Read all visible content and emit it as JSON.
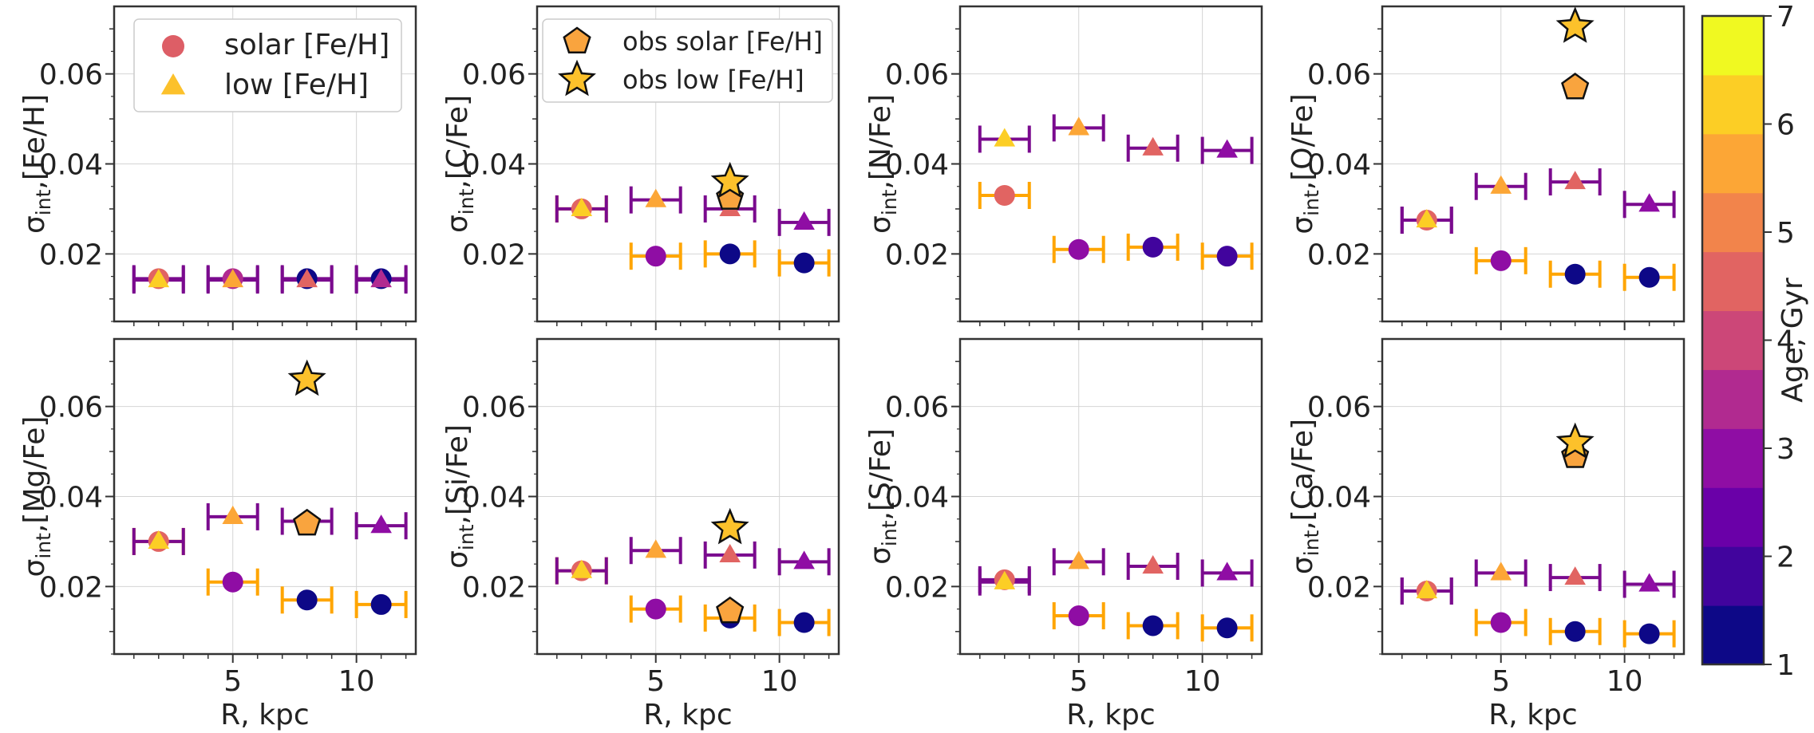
{
  "chart_data": {
    "type": "scatter",
    "layout": "2x4 grid of panels sharing x axis",
    "x_range": [
      0.2,
      12.4
    ],
    "y_range": [
      0.005,
      0.075
    ],
    "x_ticks": [
      5,
      10
    ],
    "y_ticks": [
      0.02,
      0.04,
      0.06
    ],
    "y_tick_labels": [
      "0.02",
      "0.04",
      "0.06"
    ],
    "x_tick_labels": [
      "5",
      "10"
    ],
    "xlabel": "R, kpc",
    "grid": true,
    "xerr": 1.0,
    "marker_legend": {
      "solar": "solar [Fe/H]",
      "low": "low [Fe/H]",
      "obs_solar": "obs solar [Fe/H]",
      "obs_low": "obs low [Fe/H]"
    },
    "colorbar": {
      "label": "Age, Gyr",
      "min": 1,
      "max": 7,
      "ticks": [
        "1",
        "2",
        "3",
        "4",
        "5",
        "6",
        "7"
      ],
      "colors": [
        "#0d0887",
        "#41049d",
        "#6a00a8",
        "#8f0da4",
        "#b12a90",
        "#cc4778",
        "#e16462",
        "#f2844b",
        "#fca636",
        "#fcce25",
        "#f0f921"
      ]
    },
    "panels": [
      {
        "element": "[Fe/H]",
        "ylabel_sub": "int",
        "ylabel_rest": ",[Fe/H]",
        "solar": [
          {
            "x": 2,
            "y": 0.0145,
            "age": 4.6,
            "err": "p"
          },
          {
            "x": 5,
            "y": 0.0145,
            "age": 3.3,
            "err": "p"
          },
          {
            "x": 8,
            "y": 0.0145,
            "age": 1.5,
            "err": "p"
          },
          {
            "x": 11,
            "y": 0.0145,
            "age": 1.5,
            "err": "p"
          }
        ],
        "low": [
          {
            "x": 2,
            "y": 0.0142,
            "age": 6.1,
            "err": "p"
          },
          {
            "x": 5,
            "y": 0.0142,
            "age": 5.6,
            "err": "p"
          },
          {
            "x": 8,
            "y": 0.0142,
            "age": 4.8,
            "err": "p"
          },
          {
            "x": 11,
            "y": 0.0142,
            "age": 3.2,
            "err": "p"
          }
        ],
        "obs_solar": [],
        "obs_low": []
      },
      {
        "element": "[C/Fe]",
        "ylabel_sub": "int",
        "ylabel_rest": ",[C/Fe]",
        "solar": [
          {
            "x": 2,
            "y": 0.03,
            "age": 4.7,
            "err": "o"
          },
          {
            "x": 5,
            "y": 0.0195,
            "age": 2.8,
            "err": "o"
          },
          {
            "x": 8,
            "y": 0.02,
            "age": 1.5,
            "err": "o"
          },
          {
            "x": 11,
            "y": 0.018,
            "age": 1.5,
            "err": "o"
          }
        ],
        "low": [
          {
            "x": 2,
            "y": 0.03,
            "age": 6.1,
            "err": "p"
          },
          {
            "x": 5,
            "y": 0.032,
            "age": 5.6,
            "err": "p"
          },
          {
            "x": 8,
            "y": 0.03,
            "age": 4.8,
            "err": "p"
          },
          {
            "x": 11,
            "y": 0.027,
            "age": 2.8,
            "err": "p"
          }
        ],
        "obs_solar": [
          {
            "x": 8,
            "y": 0.0325
          }
        ],
        "obs_low": [
          {
            "x": 8,
            "y": 0.036
          }
        ]
      },
      {
        "element": "[N/Fe]",
        "ylabel_sub": "int",
        "ylabel_rest": ",[N/Fe]",
        "solar": [
          {
            "x": 2,
            "y": 0.033,
            "age": 4.6,
            "err": "o"
          },
          {
            "x": 5,
            "y": 0.021,
            "age": 2.8,
            "err": "o"
          },
          {
            "x": 8,
            "y": 0.0215,
            "age": 2.0,
            "err": "o"
          },
          {
            "x": 11,
            "y": 0.0195,
            "age": 2.0,
            "err": "o"
          }
        ],
        "low": [
          {
            "x": 2,
            "y": 0.0455,
            "age": 6.1,
            "err": "p"
          },
          {
            "x": 5,
            "y": 0.048,
            "age": 5.6,
            "err": "p"
          },
          {
            "x": 8,
            "y": 0.0435,
            "age": 4.8,
            "err": "p"
          },
          {
            "x": 11,
            "y": 0.043,
            "age": 2.8,
            "err": "p"
          }
        ],
        "obs_solar": [],
        "obs_low": []
      },
      {
        "element": "[O/Fe]",
        "ylabel_sub": "int",
        "ylabel_rest": ",[O/Fe]",
        "solar": [
          {
            "x": 2,
            "y": 0.0275,
            "age": 4.6,
            "err": "p"
          },
          {
            "x": 5,
            "y": 0.0185,
            "age": 2.8,
            "err": "o"
          },
          {
            "x": 8,
            "y": 0.0155,
            "age": 1.5,
            "err": "o"
          },
          {
            "x": 11,
            "y": 0.0148,
            "age": 1.5,
            "err": "o"
          }
        ],
        "low": [
          {
            "x": 2,
            "y": 0.0275,
            "age": 6.1,
            "err": "p"
          },
          {
            "x": 5,
            "y": 0.035,
            "age": 5.6,
            "err": "p"
          },
          {
            "x": 8,
            "y": 0.036,
            "age": 4.8,
            "err": "p"
          },
          {
            "x": 11,
            "y": 0.031,
            "age": 2.8,
            "err": "p"
          }
        ],
        "obs_solar": [
          {
            "x": 8,
            "y": 0.057
          }
        ],
        "obs_low": [
          {
            "x": 8,
            "y": 0.0705
          }
        ]
      },
      {
        "element": "[Mg/Fe]",
        "ylabel_sub": "int",
        "ylabel_rest": ",[Mg/Fe]",
        "solar": [
          {
            "x": 2,
            "y": 0.03,
            "age": 4.7,
            "err": "o"
          },
          {
            "x": 5,
            "y": 0.021,
            "age": 2.8,
            "err": "o"
          },
          {
            "x": 8,
            "y": 0.017,
            "age": 1.5,
            "err": "o"
          },
          {
            "x": 11,
            "y": 0.016,
            "age": 1.5,
            "err": "o"
          }
        ],
        "low": [
          {
            "x": 2,
            "y": 0.03,
            "age": 6.1,
            "err": "p"
          },
          {
            "x": 5,
            "y": 0.0355,
            "age": 5.6,
            "err": "p"
          },
          {
            "x": 8,
            "y": 0.0345,
            "age": 5.6,
            "err": "p"
          },
          {
            "x": 11,
            "y": 0.0335,
            "age": 2.8,
            "err": "p"
          }
        ],
        "obs_solar": [
          {
            "x": 8,
            "y": 0.034
          }
        ],
        "obs_low": [
          {
            "x": 8,
            "y": 0.066
          }
        ]
      },
      {
        "element": "[Si/Fe]",
        "ylabel_sub": "int",
        "ylabel_rest": ",[Si/Fe]",
        "solar": [
          {
            "x": 2,
            "y": 0.0235,
            "age": 4.6,
            "err": "o"
          },
          {
            "x": 5,
            "y": 0.015,
            "age": 2.8,
            "err": "o"
          },
          {
            "x": 8,
            "y": 0.013,
            "age": 1.5,
            "err": "o"
          },
          {
            "x": 11,
            "y": 0.012,
            "age": 1.5,
            "err": "o"
          }
        ],
        "low": [
          {
            "x": 2,
            "y": 0.0235,
            "age": 6.1,
            "err": "p"
          },
          {
            "x": 5,
            "y": 0.028,
            "age": 5.6,
            "err": "p"
          },
          {
            "x": 8,
            "y": 0.027,
            "age": 4.8,
            "err": "p"
          },
          {
            "x": 11,
            "y": 0.0255,
            "age": 2.8,
            "err": "p"
          }
        ],
        "obs_solar": [
          {
            "x": 8,
            "y": 0.0145
          }
        ],
        "obs_low": [
          {
            "x": 8,
            "y": 0.033
          }
        ]
      },
      {
        "element": "[S/Fe]",
        "ylabel_sub": "int",
        "ylabel_rest": ",[S/Fe]",
        "solar": [
          {
            "x": 2,
            "y": 0.0215,
            "age": 4.6,
            "err": "p"
          },
          {
            "x": 5,
            "y": 0.0135,
            "age": 2.8,
            "err": "o"
          },
          {
            "x": 8,
            "y": 0.0113,
            "age": 1.5,
            "err": "o"
          },
          {
            "x": 11,
            "y": 0.0108,
            "age": 1.5,
            "err": "o"
          }
        ],
        "low": [
          {
            "x": 2,
            "y": 0.021,
            "age": 6.1,
            "err": "p"
          },
          {
            "x": 5,
            "y": 0.0255,
            "age": 5.6,
            "err": "p"
          },
          {
            "x": 8,
            "y": 0.0245,
            "age": 4.8,
            "err": "p"
          },
          {
            "x": 11,
            "y": 0.023,
            "age": 2.8,
            "err": "p"
          }
        ],
        "obs_solar": [],
        "obs_low": []
      },
      {
        "element": "[Ca/Fe]",
        "ylabel_sub": "int",
        "ylabel_rest": ",[Ca/Fe]",
        "solar": [
          {
            "x": 2,
            "y": 0.019,
            "age": 4.6,
            "err": "p"
          },
          {
            "x": 5,
            "y": 0.012,
            "age": 2.8,
            "err": "o"
          },
          {
            "x": 8,
            "y": 0.01,
            "age": 1.5,
            "err": "o"
          },
          {
            "x": 11,
            "y": 0.0095,
            "age": 1.5,
            "err": "o"
          }
        ],
        "low": [
          {
            "x": 2,
            "y": 0.019,
            "age": 6.1,
            "err": "p"
          },
          {
            "x": 5,
            "y": 0.023,
            "age": 5.6,
            "err": "p"
          },
          {
            "x": 8,
            "y": 0.022,
            "age": 4.8,
            "err": "p"
          },
          {
            "x": 11,
            "y": 0.0205,
            "age": 2.8,
            "err": "p"
          }
        ],
        "obs_solar": [
          {
            "x": 8,
            "y": 0.049
          }
        ],
        "obs_low": [
          {
            "x": 8,
            "y": 0.052
          }
        ]
      }
    ]
  }
}
